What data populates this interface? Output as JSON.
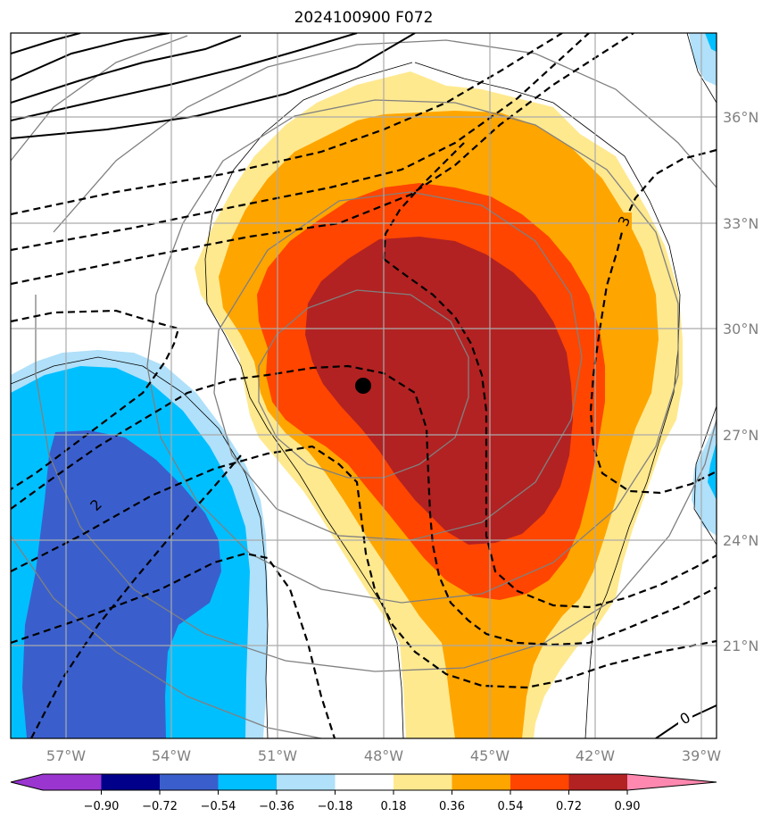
{
  "title": "2024100900 F072",
  "longitude_labels": [
    "57°W",
    "54°W",
    "51°W",
    "48°W",
    "45°W",
    "42°W",
    "39°W"
  ],
  "latitude_labels": [
    "36°N",
    "33°N",
    "30°N",
    "27°N",
    "24°N",
    "21°N"
  ],
  "contour_labels": [
    "3",
    "2",
    "0"
  ],
  "colorbar": {
    "ticks": [
      "−0.90",
      "−0.72",
      "−0.54",
      "−0.36",
      "−0.18",
      "0.18",
      "0.36",
      "0.54",
      "0.72",
      "0.90"
    ],
    "colors": [
      "#9a35d0",
      "#00008b",
      "#3a5fcd",
      "#00bfff",
      "#b0e0fa",
      "#ffffff",
      "#ffe98f",
      "#ffa500",
      "#ff4500",
      "#b22222",
      "#ff88b0"
    ]
  },
  "storm_center": {
    "lon": -48.7,
    "lat": 28.4
  }
}
